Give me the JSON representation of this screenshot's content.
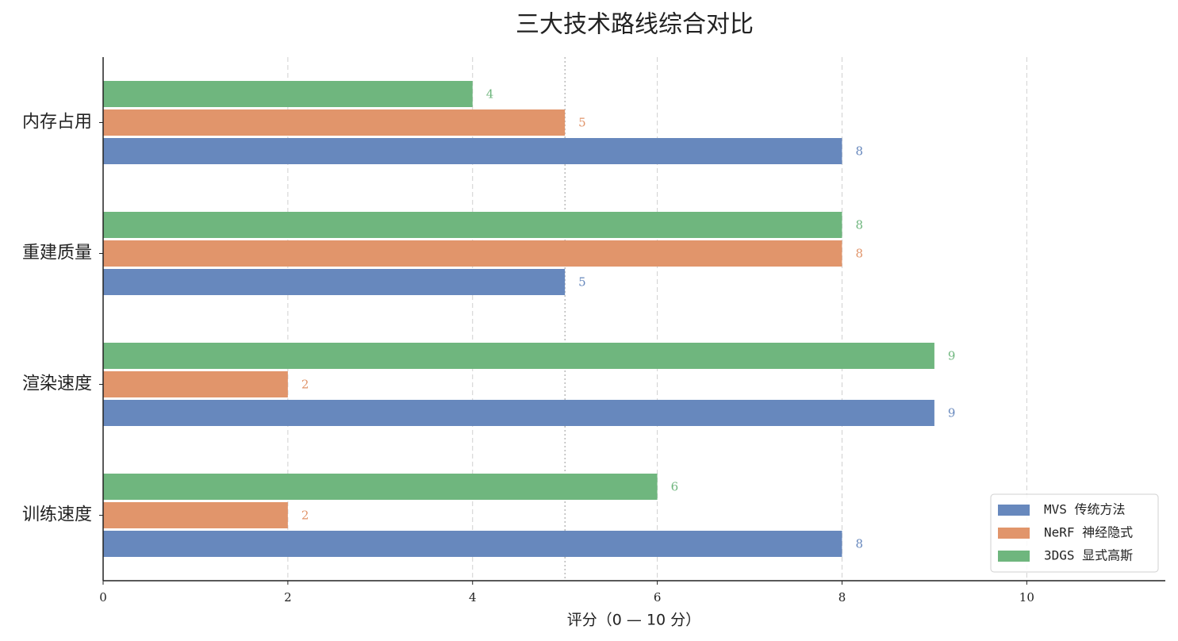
{
  "chart_data": {
    "type": "grouped-hbar",
    "title": "三大技术路线综合对比",
    "xlabel": "评分（0 — 10 分）",
    "categories": [
      "内存占用",
      "重建质量",
      "渲染速度",
      "训练速度"
    ],
    "series": [
      {
        "name": "MVS 传统方法",
        "color": "#6788bd",
        "values": [
          8,
          5,
          9,
          8
        ]
      },
      {
        "name": "NeRF 神经隐式",
        "color": "#e1956b",
        "values": [
          5,
          8,
          2,
          2
        ]
      },
      {
        "name": "3DGS 显式高斯",
        "color": "#6fb67e",
        "values": [
          4,
          8,
          9,
          6
        ]
      }
    ],
    "xlim": [
      0,
      11.5
    ],
    "xticks": [
      0,
      2,
      4,
      6,
      8,
      10
    ],
    "reference_x": 5,
    "grid": true,
    "legend": "lower-right"
  }
}
